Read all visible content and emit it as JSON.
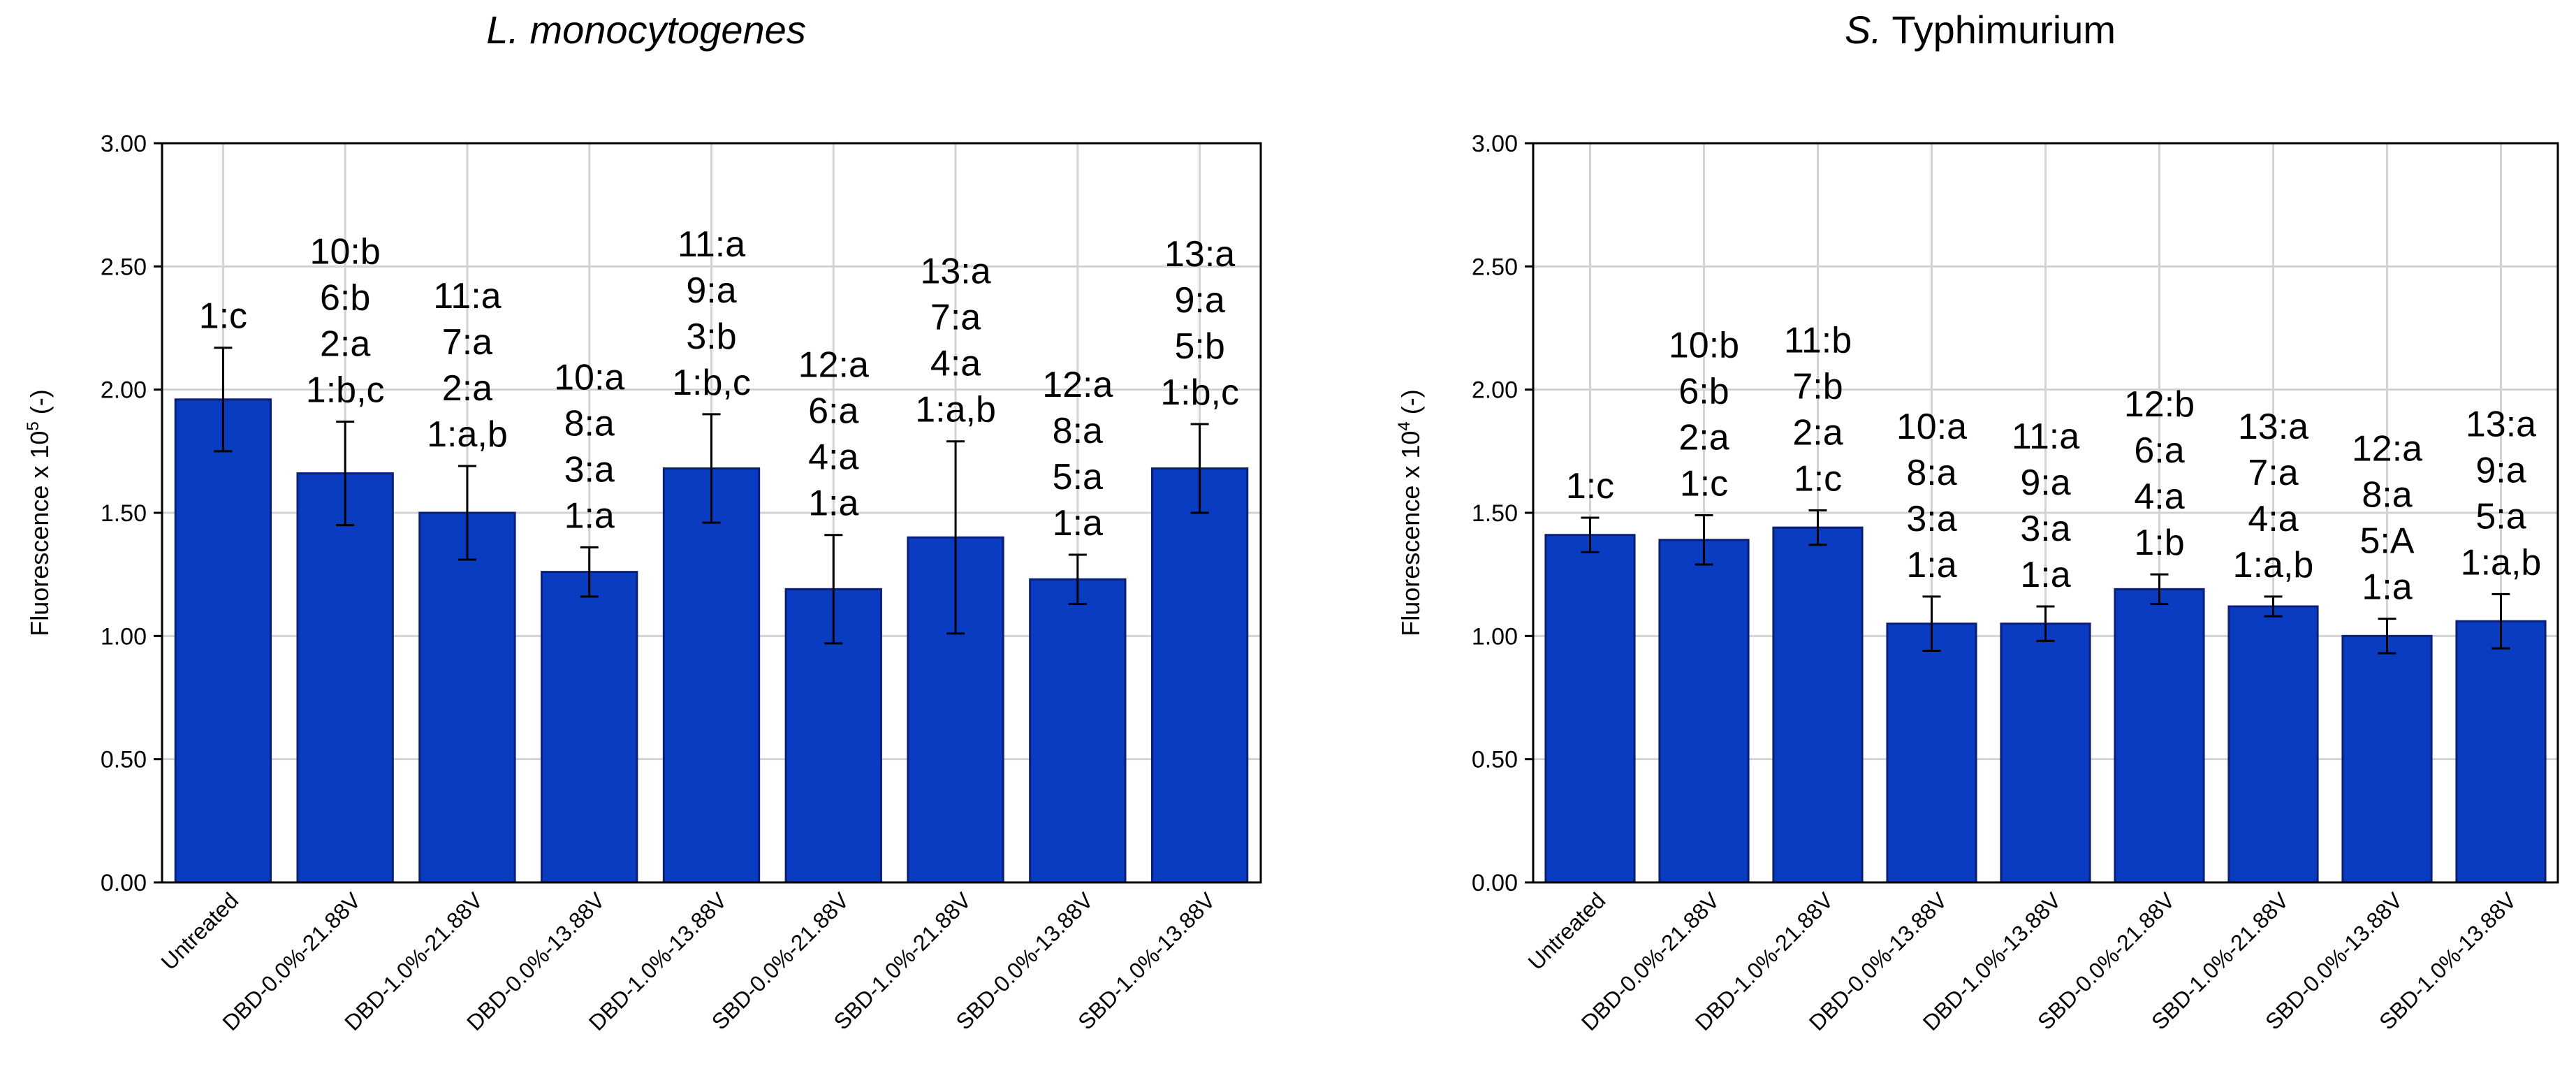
{
  "chart_data": [
    {
      "type": "bar",
      "title_italic": "L. monocytogenes",
      "title_rest": "",
      "ylabel_pre": "Fluorescence x 10",
      "ylabel_exp": "5",
      "ylabel_post": " (-)",
      "ylim": [
        0,
        3
      ],
      "yticks": [
        "0.00",
        "0.50",
        "1.00",
        "1.50",
        "2.00",
        "2.50",
        "3.00"
      ],
      "ytick_values": [
        0,
        0.5,
        1,
        1.5,
        2,
        2.5,
        3
      ],
      "grid": true,
      "bar_color": "#0a3cc2",
      "categories": [
        "Untreated",
        "DBD-0.0%-21.88V",
        "DBD-1.0%-21.88V",
        "DBD-0.0%-13.88V",
        "DBD-1.0%-13.88V",
        "SBD-0.0%-21.88V",
        "SBD-1.0%-21.88V",
        "SBD-0.0%-13.88V",
        "SBD-1.0%-13.88V"
      ],
      "values": [
        1.96,
        1.66,
        1.5,
        1.26,
        1.68,
        1.19,
        1.4,
        1.23,
        1.68
      ],
      "errors": [
        0.21,
        0.21,
        0.19,
        0.1,
        0.22,
        0.22,
        0.39,
        0.1,
        0.18
      ],
      "annotations": [
        [
          "1:c"
        ],
        [
          "10:b",
          "6:b",
          "2:a",
          "1:b,c"
        ],
        [
          "11:a",
          "7:a",
          "2:a",
          "1:a,b"
        ],
        [
          "10:a",
          "8:a",
          "3:a",
          "1:a"
        ],
        [
          "11:a",
          "9:a",
          "3:b",
          "1:b,c"
        ],
        [
          "12:a",
          "6:a",
          "4:a",
          "1:a"
        ],
        [
          "13:a",
          "7:a",
          "4:a",
          "1:a,b"
        ],
        [
          "12:a",
          "8:a",
          "5:a",
          "1:a"
        ],
        [
          "13:a",
          "9:a",
          "5:b",
          "1:b,c"
        ]
      ]
    },
    {
      "type": "bar",
      "title_italic": "S.",
      "title_rest": " Typhimurium",
      "ylabel_pre": "Fluorescence x 10",
      "ylabel_exp": "4",
      "ylabel_post": " (-)",
      "ylim": [
        0,
        3
      ],
      "yticks": [
        "0.00",
        "0.50",
        "1.00",
        "1.50",
        "2.00",
        "2.50",
        "3.00"
      ],
      "ytick_values": [
        0,
        0.5,
        1,
        1.5,
        2,
        2.5,
        3
      ],
      "grid": true,
      "bar_color": "#0a3cc2",
      "categories": [
        "Untreated",
        "DBD-0.0%-21.88V",
        "DBD-1.0%-21.88V",
        "DBD-0.0%-13.88V",
        "DBD-1.0%-13.88V",
        "SBD-0.0%-21.88V",
        "SBD-1.0%-21.88V",
        "SBD-0.0%-13.88V",
        "SBD-1.0%-13.88V"
      ],
      "values": [
        1.41,
        1.39,
        1.44,
        1.05,
        1.05,
        1.19,
        1.12,
        1.0,
        1.06
      ],
      "errors": [
        0.07,
        0.1,
        0.07,
        0.11,
        0.07,
        0.06,
        0.04,
        0.07,
        0.11
      ],
      "annotations": [
        [
          "1:c"
        ],
        [
          "10:b",
          "6:b",
          "2:a",
          "1:c"
        ],
        [
          "11:b",
          "7:b",
          "2:a",
          "1:c"
        ],
        [
          "10:a",
          "8:a",
          "3:a",
          "1:a"
        ],
        [
          "11:a",
          "9:a",
          "3:a",
          "1:a"
        ],
        [
          "12:b",
          "6:a",
          "4:a",
          "1:b"
        ],
        [
          "13:a",
          "7:a",
          "4:a",
          "1:a,b"
        ],
        [
          "12:a",
          "8:a",
          "5:A",
          "1:a"
        ],
        [
          "13:a",
          "9:a",
          "5:a",
          "1:a,b"
        ]
      ]
    }
  ]
}
